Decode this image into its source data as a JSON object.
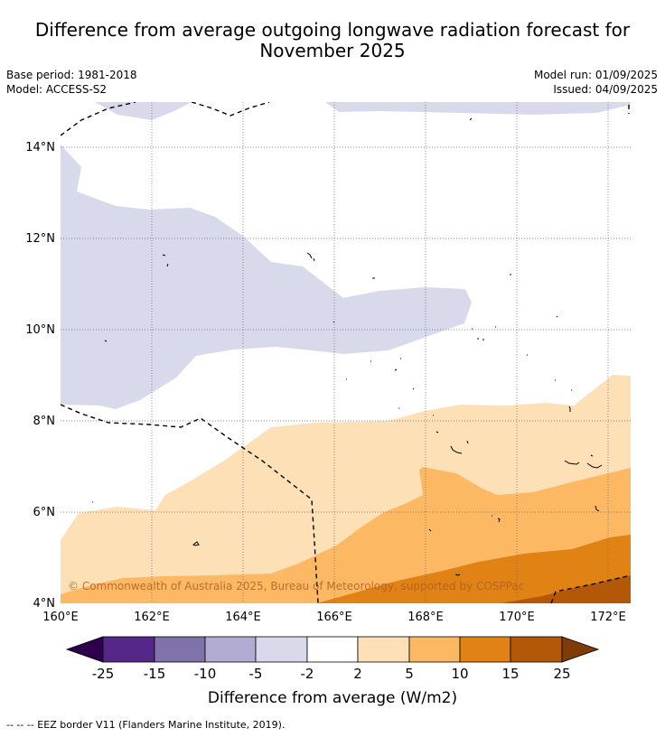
{
  "title_line1": "Difference from average outgoing longwave radiation forecast for",
  "title_line2": "November 2025",
  "base_period": "Base period: 1981-2018",
  "model": "Model: ACCESS-S2",
  "model_run": "Model run: 01/09/2025",
  "issued": "Issued: 04/09/2025",
  "copyright": "© Commonwealth of Australia 2025, Bureau of Meteorology, supported by COSPPac",
  "map": {
    "lon_ticks": [
      "160°E",
      "162°E",
      "164°E",
      "166°E",
      "168°E",
      "170°E",
      "172°E"
    ],
    "lat_ticks": [
      "4°N",
      "6°N",
      "8°N",
      "10°N",
      "12°N",
      "14°N"
    ],
    "lon_range": [
      160,
      172.5
    ],
    "lat_range": [
      4,
      15
    ]
  },
  "legend": {
    "label": "Difference from average (W/m2)",
    "tick_labels": [
      "-25",
      "-15",
      "-10",
      "-5",
      "-2",
      "2",
      "5",
      "10",
      "15",
      "25"
    ],
    "colors": [
      "#2d004b",
      "#542788",
      "#8073ac",
      "#b2abd2",
      "#d8daeb",
      "#ffffff",
      "#fee0b6",
      "#fdb863",
      "#e08214",
      "#b35806",
      "#7f3b08"
    ]
  },
  "footer": "--  --  -- EEZ border V11 (Flanders Marine Institute, 2019)."
}
